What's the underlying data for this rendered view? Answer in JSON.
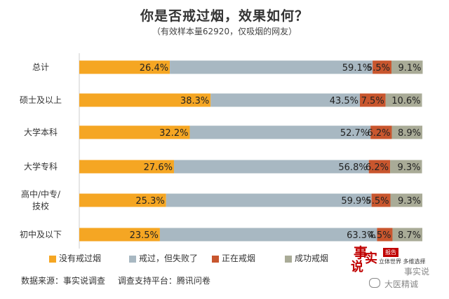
{
  "chart_data": {
    "type": "bar",
    "stacked": true,
    "orientation": "horizontal",
    "title": "你是否戒过烟，效果如何？",
    "subtitle": "（有效样本量62920，仅吸烟的网友）",
    "categories": [
      "总计",
      "硕士及以上",
      "大学本科",
      "大学专科",
      "高中/中专/技校",
      "初中及以下"
    ],
    "series": [
      {
        "name": "没有戒过烟",
        "color": "#f5a623",
        "values": [
          26.4,
          38.3,
          32.2,
          27.6,
          25.3,
          23.5
        ],
        "labels": [
          "26.4%",
          "38.3%",
          "32.2%",
          "27.6%",
          "25.3%",
          "23.5%"
        ]
      },
      {
        "name": "戒过，但失败了",
        "color": "#a8b8c2",
        "values": [
          59.1,
          43.5,
          52.7,
          56.8,
          59.9,
          63.3
        ],
        "labels": [
          "59.1%",
          "43.5%",
          "52.7%",
          "56.8%",
          "59.9%",
          "63.3%"
        ]
      },
      {
        "name": "正在戒烟",
        "color": "#c8562e",
        "values": [
          5.5,
          7.5,
          6.2,
          6.2,
          5.5,
          4.5
        ],
        "labels": [
          "5.5%",
          "7.5%",
          "6.2%",
          "6.2%",
          "5.5%",
          "4.5%"
        ]
      },
      {
        "name": "成功戒烟",
        "color": "#a9ab97",
        "values": [
          9.1,
          10.6,
          8.9,
          9.3,
          9.3,
          8.7
        ],
        "labels": [
          "9.1%",
          "10.6%",
          "8.9%",
          "9.3%",
          "9.3%",
          "8.7%"
        ]
      }
    ],
    "category_label_lines": [
      [
        "总计"
      ],
      [
        "硕士及以上"
      ],
      [
        "大学本科"
      ],
      [
        "大学专科"
      ],
      [
        "高中/中专/",
        "技校"
      ],
      [
        "初中及以下"
      ]
    ],
    "xlim": [
      0,
      100
    ],
    "grid": false,
    "legend_position": "bottom"
  },
  "source": {
    "data_source": "数据来源：事实说调查",
    "survey_platform": "调查支持平台：腾讯问卷"
  },
  "logo": {
    "char1": "事",
    "char2": "实",
    "char3": "说",
    "tag": "报告",
    "line": "立体世界 多维选择",
    "watermark1": "事实说",
    "watermark2": "大医精诚"
  }
}
